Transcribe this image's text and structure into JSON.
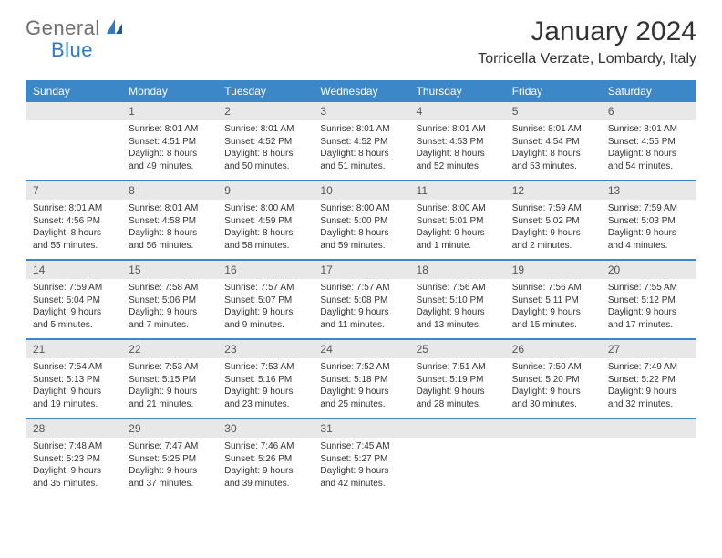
{
  "brand": {
    "general": "General",
    "blue": "Blue"
  },
  "title": "January 2024",
  "location": "Torricella Verzate, Lombardy, Italy",
  "colors": {
    "header_bg": "#3b87c8",
    "header_text": "#ffffff",
    "daynum_bg": "#e8e8e8",
    "daynum_text": "#555555",
    "body_text": "#333333",
    "rule": "#3b87c8",
    "logo_gray": "#707070",
    "logo_blue": "#2f7bbf"
  },
  "weekdays": [
    "Sunday",
    "Monday",
    "Tuesday",
    "Wednesday",
    "Thursday",
    "Friday",
    "Saturday"
  ],
  "weeks": [
    [
      null,
      {
        "n": "1",
        "sr": "8:01 AM",
        "ss": "4:51 PM",
        "d1": "Daylight: 8 hours",
        "d2": "and 49 minutes."
      },
      {
        "n": "2",
        "sr": "8:01 AM",
        "ss": "4:52 PM",
        "d1": "Daylight: 8 hours",
        "d2": "and 50 minutes."
      },
      {
        "n": "3",
        "sr": "8:01 AM",
        "ss": "4:52 PM",
        "d1": "Daylight: 8 hours",
        "d2": "and 51 minutes."
      },
      {
        "n": "4",
        "sr": "8:01 AM",
        "ss": "4:53 PM",
        "d1": "Daylight: 8 hours",
        "d2": "and 52 minutes."
      },
      {
        "n": "5",
        "sr": "8:01 AM",
        "ss": "4:54 PM",
        "d1": "Daylight: 8 hours",
        "d2": "and 53 minutes."
      },
      {
        "n": "6",
        "sr": "8:01 AM",
        "ss": "4:55 PM",
        "d1": "Daylight: 8 hours",
        "d2": "and 54 minutes."
      }
    ],
    [
      {
        "n": "7",
        "sr": "8:01 AM",
        "ss": "4:56 PM",
        "d1": "Daylight: 8 hours",
        "d2": "and 55 minutes."
      },
      {
        "n": "8",
        "sr": "8:01 AM",
        "ss": "4:58 PM",
        "d1": "Daylight: 8 hours",
        "d2": "and 56 minutes."
      },
      {
        "n": "9",
        "sr": "8:00 AM",
        "ss": "4:59 PM",
        "d1": "Daylight: 8 hours",
        "d2": "and 58 minutes."
      },
      {
        "n": "10",
        "sr": "8:00 AM",
        "ss": "5:00 PM",
        "d1": "Daylight: 8 hours",
        "d2": "and 59 minutes."
      },
      {
        "n": "11",
        "sr": "8:00 AM",
        "ss": "5:01 PM",
        "d1": "Daylight: 9 hours",
        "d2": "and 1 minute."
      },
      {
        "n": "12",
        "sr": "7:59 AM",
        "ss": "5:02 PM",
        "d1": "Daylight: 9 hours",
        "d2": "and 2 minutes."
      },
      {
        "n": "13",
        "sr": "7:59 AM",
        "ss": "5:03 PM",
        "d1": "Daylight: 9 hours",
        "d2": "and 4 minutes."
      }
    ],
    [
      {
        "n": "14",
        "sr": "7:59 AM",
        "ss": "5:04 PM",
        "d1": "Daylight: 9 hours",
        "d2": "and 5 minutes."
      },
      {
        "n": "15",
        "sr": "7:58 AM",
        "ss": "5:06 PM",
        "d1": "Daylight: 9 hours",
        "d2": "and 7 minutes."
      },
      {
        "n": "16",
        "sr": "7:57 AM",
        "ss": "5:07 PM",
        "d1": "Daylight: 9 hours",
        "d2": "and 9 minutes."
      },
      {
        "n": "17",
        "sr": "7:57 AM",
        "ss": "5:08 PM",
        "d1": "Daylight: 9 hours",
        "d2": "and 11 minutes."
      },
      {
        "n": "18",
        "sr": "7:56 AM",
        "ss": "5:10 PM",
        "d1": "Daylight: 9 hours",
        "d2": "and 13 minutes."
      },
      {
        "n": "19",
        "sr": "7:56 AM",
        "ss": "5:11 PM",
        "d1": "Daylight: 9 hours",
        "d2": "and 15 minutes."
      },
      {
        "n": "20",
        "sr": "7:55 AM",
        "ss": "5:12 PM",
        "d1": "Daylight: 9 hours",
        "d2": "and 17 minutes."
      }
    ],
    [
      {
        "n": "21",
        "sr": "7:54 AM",
        "ss": "5:13 PM",
        "d1": "Daylight: 9 hours",
        "d2": "and 19 minutes."
      },
      {
        "n": "22",
        "sr": "7:53 AM",
        "ss": "5:15 PM",
        "d1": "Daylight: 9 hours",
        "d2": "and 21 minutes."
      },
      {
        "n": "23",
        "sr": "7:53 AM",
        "ss": "5:16 PM",
        "d1": "Daylight: 9 hours",
        "d2": "and 23 minutes."
      },
      {
        "n": "24",
        "sr": "7:52 AM",
        "ss": "5:18 PM",
        "d1": "Daylight: 9 hours",
        "d2": "and 25 minutes."
      },
      {
        "n": "25",
        "sr": "7:51 AM",
        "ss": "5:19 PM",
        "d1": "Daylight: 9 hours",
        "d2": "and 28 minutes."
      },
      {
        "n": "26",
        "sr": "7:50 AM",
        "ss": "5:20 PM",
        "d1": "Daylight: 9 hours",
        "d2": "and 30 minutes."
      },
      {
        "n": "27",
        "sr": "7:49 AM",
        "ss": "5:22 PM",
        "d1": "Daylight: 9 hours",
        "d2": "and 32 minutes."
      }
    ],
    [
      {
        "n": "28",
        "sr": "7:48 AM",
        "ss": "5:23 PM",
        "d1": "Daylight: 9 hours",
        "d2": "and 35 minutes."
      },
      {
        "n": "29",
        "sr": "7:47 AM",
        "ss": "5:25 PM",
        "d1": "Daylight: 9 hours",
        "d2": "and 37 minutes."
      },
      {
        "n": "30",
        "sr": "7:46 AM",
        "ss": "5:26 PM",
        "d1": "Daylight: 9 hours",
        "d2": "and 39 minutes."
      },
      {
        "n": "31",
        "sr": "7:45 AM",
        "ss": "5:27 PM",
        "d1": "Daylight: 9 hours",
        "d2": "and 42 minutes."
      },
      null,
      null,
      null
    ]
  ]
}
